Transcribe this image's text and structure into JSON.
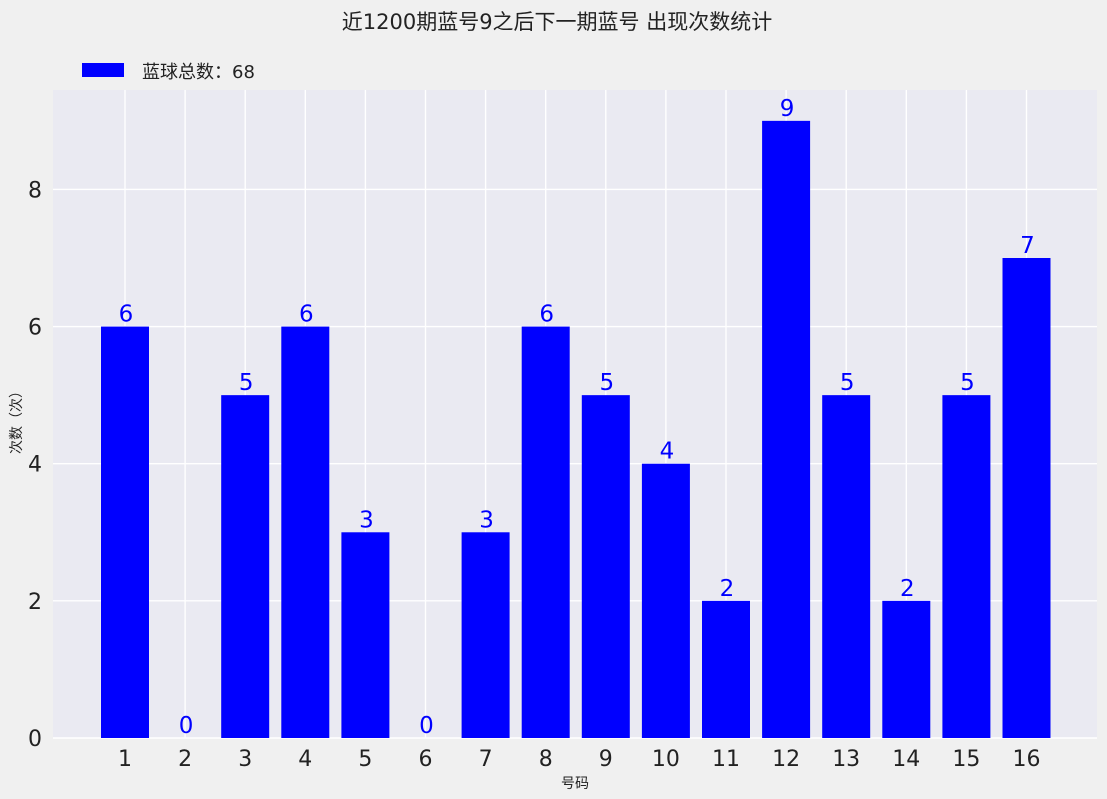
{
  "chart_data": {
    "type": "bar",
    "title": "近1200期蓝号9之后下一期蓝号 出现次数统计",
    "xlabel": "号码",
    "ylabel": "次数（次）",
    "categories": [
      "1",
      "2",
      "3",
      "4",
      "5",
      "6",
      "7",
      "8",
      "9",
      "10",
      "11",
      "12",
      "13",
      "14",
      "15",
      "16"
    ],
    "series": [
      {
        "name": "蓝球总数：68",
        "values": [
          6,
          0,
          5,
          6,
          3,
          0,
          3,
          6,
          5,
          4,
          2,
          9,
          5,
          2,
          5,
          7
        ]
      }
    ],
    "yticks": [
      "0",
      "2",
      "4",
      "6",
      "8"
    ],
    "ylim": [
      0,
      9.45
    ],
    "grid": true,
    "legend_position": "top-left",
    "colors": {
      "bar": "#0000ff",
      "value_label": "#0000ff",
      "plot_background": "#eaeaf2",
      "figure_background": "#f0f0f0",
      "grid": "#ffffff",
      "text": "#222222"
    }
  }
}
